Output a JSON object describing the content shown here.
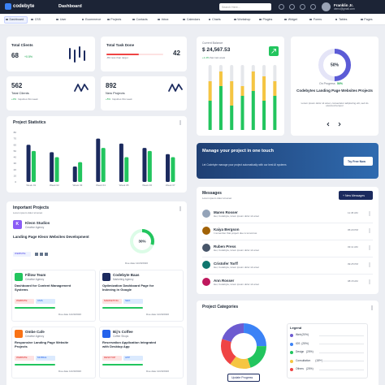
{
  "header": {
    "logo": "codebyte",
    "title": "Dashboard",
    "search": "Search Here...",
    "user_name": "Franklin Jr.",
    "user_email": "demo@gmail.com"
  },
  "nav": [
    "Dashboard",
    "CSS",
    "User",
    "Ecommerce",
    "Projects",
    "Contacts",
    "Inbox",
    "Calendars",
    "Charts",
    "Workshop",
    "Plugins",
    "Widget",
    "Forms",
    "Tables",
    "Pages"
  ],
  "total_clients": {
    "title": "Total Clients",
    "value": "68",
    "change": "+0.5%"
  },
  "total_task": {
    "title": "Total Task Done",
    "value": "42",
    "change": "-8% less than target"
  },
  "inquiries": {
    "value": "562",
    "title": "Total Clients",
    "change": "+0%",
    "note": "Inquiries this week"
  },
  "new_projects": {
    "value": "892",
    "title": "New Projects",
    "change": "+5%",
    "note": "Inquiries this week"
  },
  "balance": {
    "title": "Current Balance",
    "value": "$ 24,567.53",
    "change": "+1.4%",
    "note": "than last week",
    "chart": {
      "type": "bar",
      "stacked": true,
      "series": [
        {
          "color": "#22c55e",
          "values": [
            30,
            45,
            25,
            35,
            40,
            30,
            35
          ]
        },
        {
          "color": "#f5c542",
          "values": [
            20,
            15,
            25,
            10,
            20,
            25,
            15
          ]
        }
      ]
    }
  },
  "project_card": {
    "percent": 50,
    "percent_label": "50%",
    "status": "On Progress",
    "status_value": "50%",
    "title": "Codebytes Landing Page Websites Projects",
    "desc": "Lorem ipsum dolor sit amet, consectetur adipiscing elit, sed do eiusmod tempor"
  },
  "project_statistics": {
    "type": "bar",
    "title": "Project Statistics",
    "categories": [
      "Week 01",
      "Week 02",
      "Week 03",
      "Week 04",
      "Week 05",
      "Week 06",
      "Week 07"
    ],
    "series": [
      {
        "color": "#1b2a5e",
        "values": [
          60,
          48,
          25,
          70,
          62,
          55,
          45
        ]
      },
      {
        "color": "#22c55e",
        "values": [
          50,
          40,
          32,
          55,
          40,
          50,
          40
        ]
      }
    ],
    "ylim": [
      0,
      80
    ],
    "yticks": [
      0,
      10,
      20,
      30,
      40,
      50,
      60,
      70,
      80
    ]
  },
  "banner": {
    "title": "Manage your project in one touch",
    "text": "Let Codebyte manage your project automatically with our best AI systems",
    "button": "Try Free Now"
  },
  "important": {
    "title": "Important Projects",
    "subtitle": "Lorem ipsum dolor sit amet",
    "main": {
      "initial": "K",
      "name": "Kleon Studios",
      "type": "Creative Agency",
      "title": "Landing Page Kleon Websites Development",
      "tag": "WEBSITE",
      "progress": 30,
      "progress_label": "30%",
      "due": "Due date 12/20/2020"
    },
    "projects": [
      {
        "name": "Fillow Team",
        "type": "Creative Agency",
        "title": "Dashboard for Content Management Systems",
        "tags": [
          "WEBSITE",
          "CMS"
        ],
        "due": "Due date 12/20/2020"
      },
      {
        "name": "Codebyte Baas",
        "type": "Marketing Agency",
        "title": "Optimization Dashboard Page for Indexing in Google",
        "tags": [
          "MARKETING",
          "SEO"
        ],
        "due": "Due date 12/20/2020"
      },
      {
        "name": "Ombe Cafe",
        "type": "Creative Agency",
        "title": "Responsive Landing Page Website Projects",
        "tags": [
          "WEBSITE",
          "MOBILE"
        ],
        "due": "Due date 12/20/2020"
      },
      {
        "name": "Bij's Coffee",
        "type": "Coffee Shops",
        "title": "Reservation Application Integrated with Desktop App",
        "tags": [
          "DESKTOP",
          "APP"
        ],
        "due": "Due date 12/20/2020"
      }
    ]
  },
  "messages": {
    "title": "Messages",
    "subtitle": "Lorem ipsum dolor sit amet",
    "button": "+ New Messages",
    "items": [
      {
        "name": "Maren Rosser",
        "text": "Hei, Codebyte, lorem ipsum dolor sit amet",
        "time": "11:45 AM"
      },
      {
        "name": "Kaiya Bergson",
        "text": "I remember that project due is tomorrow.",
        "time": "05:20 PM"
      },
      {
        "name": "Ruben Press",
        "text": "Hei, Codebyte, lorem ipsum dolor sit amet",
        "time": "03:11 AM"
      },
      {
        "name": "Cristofer Torff",
        "text": "Hei, Codebyte, lorem ipsum dolor sit amet",
        "time": "09:25 PM"
      },
      {
        "name": "Ann Rosser",
        "text": "Hei, Codebyte, lorem ipsum dolor sit amet",
        "time": "08:15 AM"
      }
    ]
  },
  "categories": {
    "type": "pie",
    "title": "Project Categories",
    "legend_title": "Legend",
    "button": "Update Progress",
    "categories": [
      "Web",
      "iOS",
      "Design",
      "Consultation",
      "Others"
    ],
    "values": [
      20,
      25,
      20,
      15,
      20
    ],
    "value_labels": [
      "(20%)",
      "(25%)",
      "(20%)",
      "(15%)",
      "(20%)"
    ],
    "colors": [
      "#6d5bd0",
      "#3b82f6",
      "#22c55e",
      "#f5c542",
      "#ef4444"
    ]
  }
}
